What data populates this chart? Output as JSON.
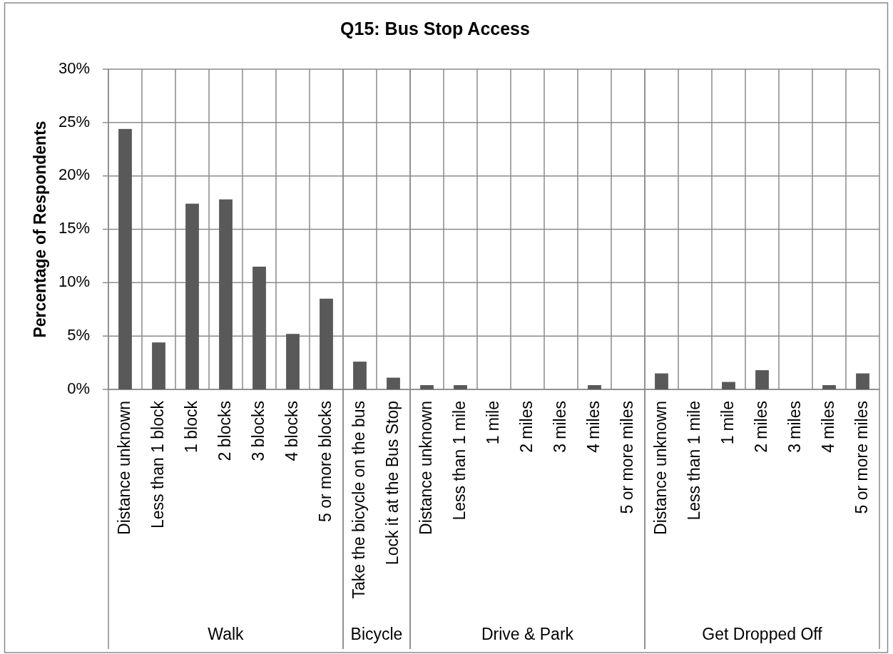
{
  "chart_data": [
    {
      "type": "other",
      "title": "Q15: Bus Stop Access"
    },
    {
      "type": "bar",
      "ylabel": "Percentage of Respondents",
      "xlabel": "Walk",
      "categories": [
        "Distance unknown",
        "Less than 1 block",
        "1 block",
        "2 blocks",
        "3 blocks",
        "4 blocks",
        "5 or more blocks"
      ],
      "values": [
        24.4,
        4.4,
        17.4,
        17.8,
        11.5,
        5.2,
        8.5
      ],
      "color": "#595959",
      "ylim": [
        0,
        30
      ],
      "yticks": [
        {
          "value": 0,
          "label": "0%"
        },
        {
          "value": 5,
          "label": "5%"
        },
        {
          "value": 10,
          "label": "10%"
        },
        {
          "value": 15,
          "label": "15%"
        },
        {
          "value": 20,
          "label": "20%"
        },
        {
          "value": 25,
          "label": "25%"
        },
        {
          "value": 30,
          "label": "30%"
        }
      ],
      "grid": true
    },
    {
      "type": "bar",
      "xlabel": "Bicycle",
      "categories": [
        "Take the bicycle on the bus",
        "Lock it at the Bus Stop"
      ],
      "values": [
        2.6,
        1.1
      ],
      "color": "#595959",
      "ylim": [
        0,
        30
      ],
      "yticks": [
        {
          "value": 0,
          "label": null
        },
        {
          "value": 5,
          "label": null
        },
        {
          "value": 10,
          "label": null
        },
        {
          "value": 15,
          "label": null
        },
        {
          "value": 20,
          "label": null
        },
        {
          "value": 25,
          "label": null
        },
        {
          "value": 30,
          "label": null
        }
      ],
      "grid": true,
      "tick_labels": "x"
    },
    {
      "type": "bar",
      "xlabel": "Drive & Park",
      "categories": [
        "Distance unknown",
        "Less than 1 mile",
        "1 mile",
        "2 miles",
        "3 miles",
        "4 miles",
        "5 or more miles"
      ],
      "values": [
        0.4,
        0.4,
        0,
        0,
        0,
        0.4,
        0
      ],
      "color": "#595959",
      "ylim": [
        0,
        30
      ],
      "yticks": [
        {
          "value": 0,
          "label": null
        },
        {
          "value": 5,
          "label": null
        },
        {
          "value": 10,
          "label": null
        },
        {
          "value": 15,
          "label": null
        },
        {
          "value": 20,
          "label": null
        },
        {
          "value": 25,
          "label": null
        },
        {
          "value": 30,
          "label": null
        }
      ],
      "grid": true,
      "tick_labels": "x"
    },
    {
      "type": "bar",
      "xlabel": "Get Dropped Off",
      "categories": [
        "Distance unknown",
        "Less than 1 mile",
        "1 mile",
        "2 miles",
        "3 miles",
        "4 miles",
        "5 or more miles"
      ],
      "values": [
        1.5,
        0,
        0.7,
        1.8,
        0,
        0.4,
        1.5
      ],
      "color": "#595959",
      "ylim": [
        0,
        30
      ],
      "yticks": [
        {
          "value": 0,
          "label": null
        },
        {
          "value": 5,
          "label": null
        },
        {
          "value": 10,
          "label": null
        },
        {
          "value": 15,
          "label": null
        },
        {
          "value": 20,
          "label": null
        },
        {
          "value": 25,
          "label": null
        },
        {
          "value": 30,
          "label": null
        }
      ],
      "grid": true,
      "tick_labels": "x"
    }
  ]
}
